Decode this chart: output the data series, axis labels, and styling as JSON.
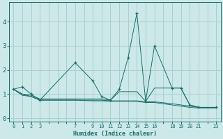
{
  "xlabel": "Humidex (Indice chaleur)",
  "bg_color": "#cce8e8",
  "grid_color": "#aacfcf",
  "line_color": "#1a6b6b",
  "x_ticks_labeled": [
    0,
    1,
    2,
    3,
    7,
    9,
    10,
    11,
    12,
    13,
    14,
    15,
    16,
    18,
    19,
    20,
    21,
    23
  ],
  "x_minor_ticks": [
    4,
    5,
    6,
    8,
    17,
    22
  ],
  "ylim": [
    -0.15,
    4.8
  ],
  "xlim": [
    -0.5,
    23.5
  ],
  "series": [
    {
      "x": [
        0,
        1,
        2,
        3,
        7,
        9,
        10,
        11,
        12,
        13,
        14,
        15,
        16,
        18,
        19,
        20,
        21,
        23
      ],
      "y": [
        1.2,
        1.3,
        1.0,
        0.75,
        2.3,
        1.55,
        0.9,
        0.75,
        1.2,
        2.5,
        4.35,
        0.7,
        3.0,
        1.25,
        1.25,
        0.55,
        0.45,
        0.45
      ],
      "marker": true
    },
    {
      "x": [
        0,
        1,
        2,
        3,
        7,
        9,
        10,
        11,
        12,
        13,
        14,
        15,
        16,
        18,
        19,
        20,
        21,
        23
      ],
      "y": [
        1.2,
        1.0,
        0.95,
        0.8,
        0.8,
        0.8,
        0.8,
        0.75,
        1.1,
        1.1,
        1.1,
        0.7,
        1.25,
        1.25,
        1.25,
        0.55,
        0.45,
        0.45
      ],
      "marker": false
    },
    {
      "x": [
        0,
        1,
        2,
        3,
        7,
        9,
        10,
        11,
        12,
        13,
        14,
        15,
        16,
        18,
        19,
        20,
        21,
        23
      ],
      "y": [
        1.2,
        0.95,
        0.9,
        0.75,
        0.75,
        0.75,
        0.75,
        0.72,
        0.72,
        0.72,
        0.72,
        0.68,
        0.68,
        0.6,
        0.55,
        0.5,
        0.45,
        0.45
      ],
      "marker": false
    },
    {
      "x": [
        0,
        1,
        2,
        3,
        7,
        9,
        10,
        11,
        12,
        13,
        14,
        15,
        16,
        18,
        19,
        20,
        21,
        23
      ],
      "y": [
        1.2,
        1.0,
        0.9,
        0.75,
        0.75,
        0.72,
        0.72,
        0.7,
        0.7,
        0.7,
        0.7,
        0.65,
        0.65,
        0.55,
        0.5,
        0.45,
        0.42,
        0.42
      ],
      "marker": false
    }
  ]
}
